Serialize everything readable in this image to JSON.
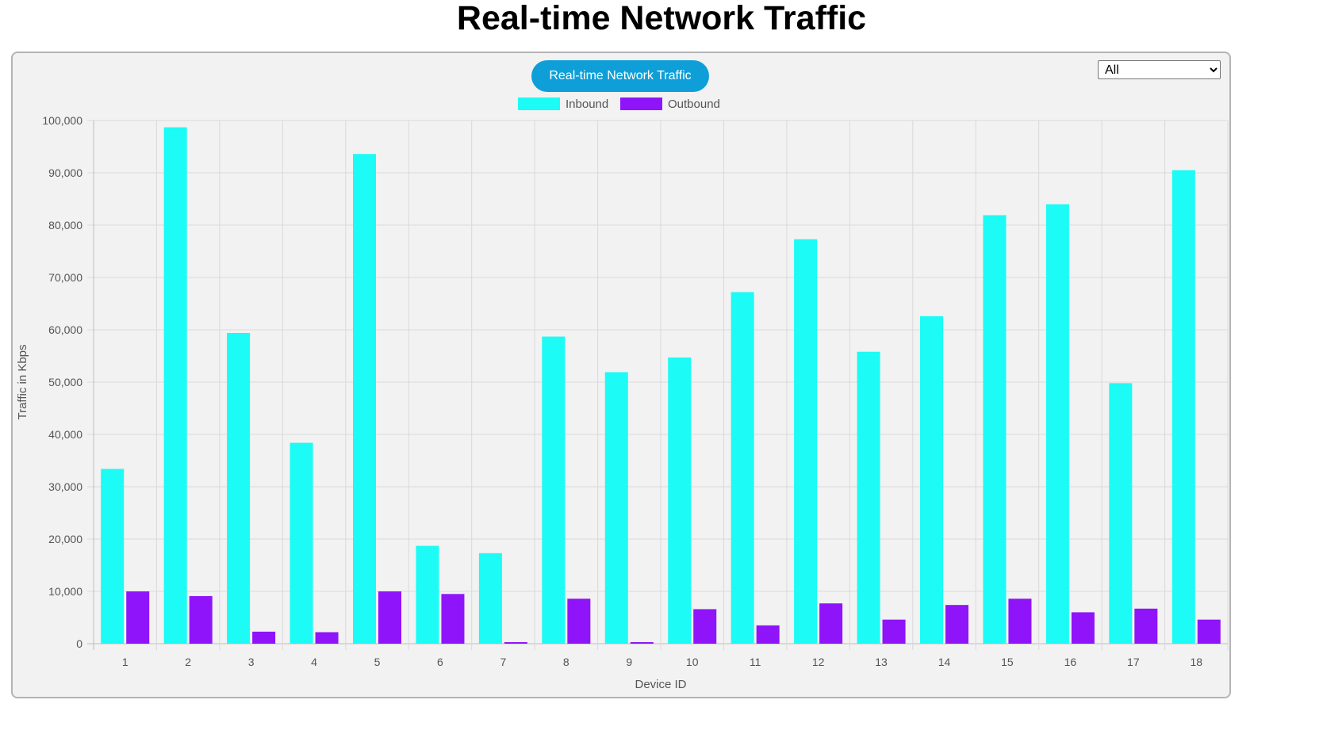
{
  "page": {
    "title": "Real-time Network Traffic"
  },
  "filter": {
    "options": [
      "All"
    ],
    "selected": "All"
  },
  "colors": {
    "inbound": "#1cfbf5",
    "outbound": "#8f14fa",
    "pill": "#0f9fd8",
    "panel_bg": "#f1f2f1",
    "grid": "#d9d9d9"
  },
  "chart_data": {
    "type": "bar",
    "title": "Real-time Network Traffic",
    "xlabel": "Device ID",
    "ylabel": "Traffic in Kbps",
    "ylim": [
      0,
      100000
    ],
    "yticks": [
      0,
      10000,
      20000,
      30000,
      40000,
      50000,
      60000,
      70000,
      80000,
      90000,
      100000
    ],
    "ytick_labels": [
      "0",
      "10,000",
      "20,000",
      "30,000",
      "40,000",
      "50,000",
      "60,000",
      "70,000",
      "80,000",
      "90,000",
      "100,000"
    ],
    "grid": true,
    "legend_position": "top-center",
    "categories": [
      "1",
      "2",
      "3",
      "4",
      "5",
      "6",
      "7",
      "8",
      "9",
      "10",
      "11",
      "12",
      "13",
      "14",
      "15",
      "16",
      "17",
      "18"
    ],
    "series": [
      {
        "name": "Inbound",
        "values": [
          33400,
          98700,
          59400,
          38400,
          93600,
          18700,
          17300,
          58700,
          51900,
          54700,
          67200,
          77300,
          55800,
          62600,
          81900,
          84000,
          49800,
          90500
        ]
      },
      {
        "name": "Outbound",
        "values": [
          10000,
          9100,
          2300,
          2200,
          10000,
          9500,
          300,
          8600,
          300,
          6600,
          3500,
          7700,
          4600,
          7400,
          8600,
          6000,
          6700,
          4600
        ]
      }
    ]
  }
}
